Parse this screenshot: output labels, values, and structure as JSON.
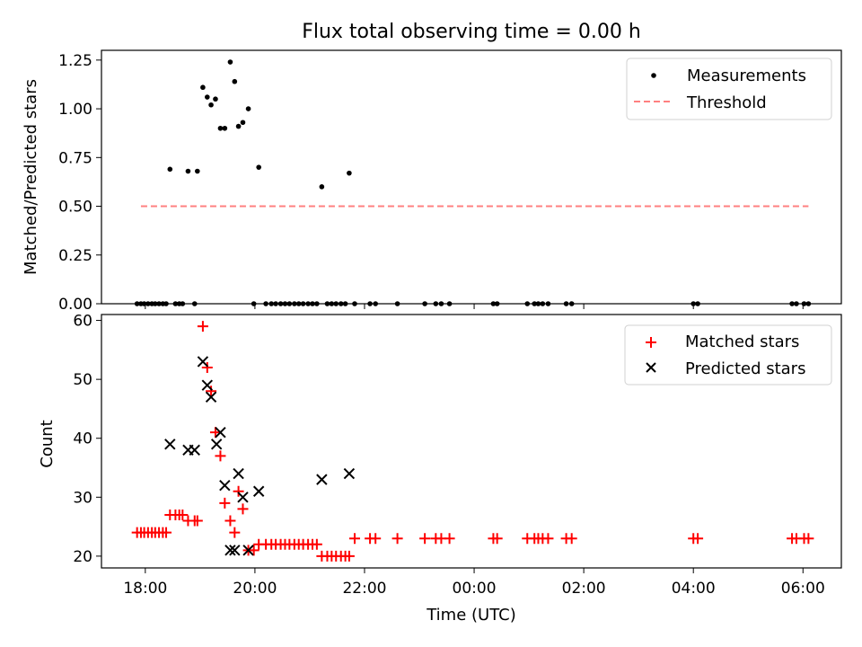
{
  "title": "Flux total observing time = 0.00 h",
  "colors": {
    "matched": "#ff0000",
    "predicted": "#000000",
    "threshold": "#ff8080",
    "measurement": "#000000"
  },
  "chart_data": [
    {
      "type": "scatter",
      "ylabel": "Matched/Predicted stars",
      "ylim": [
        0,
        1.3
      ],
      "yticks": [
        "0.00",
        "0.25",
        "0.50",
        "0.75",
        "1.00",
        "1.25"
      ],
      "legend": {
        "position": "top-right",
        "entries": [
          "Measurements",
          "Threshold"
        ]
      },
      "threshold": {
        "label": "Threshold",
        "value": 0.5,
        "x_start": 17.92,
        "x_end": 30.1
      },
      "series": [
        {
          "name": "Measurements",
          "points": [
            [
              17.85,
              0
            ],
            [
              17.92,
              0
            ],
            [
              17.98,
              0
            ],
            [
              18.05,
              0
            ],
            [
              18.12,
              0
            ],
            [
              18.18,
              0
            ],
            [
              18.25,
              0
            ],
            [
              18.32,
              0
            ],
            [
              18.38,
              0
            ],
            [
              18.45,
              0.69
            ],
            [
              18.55,
              0
            ],
            [
              18.62,
              0
            ],
            [
              18.68,
              0
            ],
            [
              18.78,
              0.68
            ],
            [
              18.9,
              0
            ],
            [
              18.95,
              0.68
            ],
            [
              19.05,
              1.11
            ],
            [
              19.13,
              1.06
            ],
            [
              19.2,
              1.02
            ],
            [
              19.28,
              1.05
            ],
            [
              19.37,
              0.9
            ],
            [
              19.45,
              0.9
            ],
            [
              19.55,
              1.24
            ],
            [
              19.63,
              1.14
            ],
            [
              19.7,
              0.91
            ],
            [
              19.78,
              0.93
            ],
            [
              19.88,
              1.0
            ],
            [
              19.98,
              0
            ],
            [
              20.07,
              0.7
            ],
            [
              20.2,
              0
            ],
            [
              20.3,
              0
            ],
            [
              20.38,
              0
            ],
            [
              20.47,
              0
            ],
            [
              20.55,
              0
            ],
            [
              20.63,
              0
            ],
            [
              20.72,
              0
            ],
            [
              20.8,
              0
            ],
            [
              20.88,
              0
            ],
            [
              20.97,
              0
            ],
            [
              21.05,
              0
            ],
            [
              21.13,
              0
            ],
            [
              21.22,
              0.6
            ],
            [
              21.32,
              0
            ],
            [
              21.4,
              0
            ],
            [
              21.48,
              0
            ],
            [
              21.57,
              0
            ],
            [
              21.65,
              0
            ],
            [
              21.72,
              0.67
            ],
            [
              21.82,
              0
            ],
            [
              22.1,
              0
            ],
            [
              22.2,
              0
            ],
            [
              22.6,
              0
            ],
            [
              23.1,
              0
            ],
            [
              23.3,
              0
            ],
            [
              23.4,
              0
            ],
            [
              23.55,
              0
            ],
            [
              24.35,
              0
            ],
            [
              24.42,
              0
            ],
            [
              24.97,
              0
            ],
            [
              25.1,
              0
            ],
            [
              25.17,
              0
            ],
            [
              25.25,
              0
            ],
            [
              25.35,
              0
            ],
            [
              25.68,
              0
            ],
            [
              25.78,
              0
            ],
            [
              28.0,
              0
            ],
            [
              28.08,
              0
            ],
            [
              29.8,
              0
            ],
            [
              29.88,
              0
            ],
            [
              30.02,
              0
            ],
            [
              30.1,
              0
            ]
          ]
        }
      ]
    },
    {
      "type": "scatter",
      "xlabel": "Time (UTC)",
      "ylabel": "Count",
      "ylim": [
        18,
        61
      ],
      "yticks": [
        "20",
        "30",
        "40",
        "50",
        "60"
      ],
      "xlim": [
        17.2,
        30.7
      ],
      "xtick_values": [
        18,
        20,
        22,
        24,
        26,
        28,
        30
      ],
      "xticks": [
        "18:00",
        "20:00",
        "22:00",
        "00:00",
        "02:00",
        "04:00",
        "06:00"
      ],
      "legend": {
        "position": "top-right",
        "entries": [
          "Matched stars",
          "Predicted stars"
        ]
      },
      "series": [
        {
          "name": "Matched stars",
          "points": [
            [
              17.85,
              24
            ],
            [
              17.92,
              24
            ],
            [
              17.98,
              24
            ],
            [
              18.05,
              24
            ],
            [
              18.12,
              24
            ],
            [
              18.18,
              24
            ],
            [
              18.25,
              24
            ],
            [
              18.32,
              24
            ],
            [
              18.38,
              24
            ],
            [
              18.45,
              27
            ],
            [
              18.55,
              27
            ],
            [
              18.62,
              27
            ],
            [
              18.68,
              27
            ],
            [
              18.78,
              26
            ],
            [
              18.9,
              26
            ],
            [
              18.95,
              26
            ],
            [
              19.05,
              59
            ],
            [
              19.13,
              52
            ],
            [
              19.2,
              48
            ],
            [
              19.28,
              41
            ],
            [
              19.37,
              37
            ],
            [
              19.45,
              29
            ],
            [
              19.55,
              26
            ],
            [
              19.63,
              24
            ],
            [
              19.7,
              31
            ],
            [
              19.78,
              28
            ],
            [
              19.88,
              21
            ],
            [
              19.98,
              21
            ],
            [
              20.07,
              22
            ],
            [
              20.2,
              22
            ],
            [
              20.3,
              22
            ],
            [
              20.38,
              22
            ],
            [
              20.47,
              22
            ],
            [
              20.55,
              22
            ],
            [
              20.63,
              22
            ],
            [
              20.72,
              22
            ],
            [
              20.8,
              22
            ],
            [
              20.88,
              22
            ],
            [
              20.97,
              22
            ],
            [
              21.05,
              22
            ],
            [
              21.13,
              22
            ],
            [
              21.22,
              20
            ],
            [
              21.32,
              20
            ],
            [
              21.4,
              20
            ],
            [
              21.48,
              20
            ],
            [
              21.57,
              20
            ],
            [
              21.65,
              20
            ],
            [
              21.72,
              20
            ],
            [
              21.82,
              23
            ],
            [
              22.1,
              23
            ],
            [
              22.2,
              23
            ],
            [
              22.6,
              23
            ],
            [
              23.1,
              23
            ],
            [
              23.3,
              23
            ],
            [
              23.4,
              23
            ],
            [
              23.55,
              23
            ],
            [
              24.35,
              23
            ],
            [
              24.42,
              23
            ],
            [
              24.97,
              23
            ],
            [
              25.1,
              23
            ],
            [
              25.17,
              23
            ],
            [
              25.25,
              23
            ],
            [
              25.35,
              23
            ],
            [
              25.68,
              23
            ],
            [
              25.78,
              23
            ],
            [
              28.0,
              23
            ],
            [
              28.08,
              23
            ],
            [
              29.8,
              23
            ],
            [
              29.88,
              23
            ],
            [
              30.02,
              23
            ],
            [
              30.1,
              23
            ]
          ]
        },
        {
          "name": "Predicted stars",
          "points": [
            [
              18.45,
              39
            ],
            [
              18.78,
              38
            ],
            [
              18.9,
              38
            ],
            [
              19.05,
              53
            ],
            [
              19.13,
              49
            ],
            [
              19.2,
              47
            ],
            [
              19.3,
              39
            ],
            [
              19.37,
              41
            ],
            [
              19.45,
              32
            ],
            [
              19.55,
              21
            ],
            [
              19.63,
              21
            ],
            [
              19.7,
              34
            ],
            [
              19.78,
              30
            ],
            [
              19.88,
              21
            ],
            [
              20.07,
              31
            ],
            [
              21.22,
              33
            ],
            [
              21.72,
              34
            ]
          ]
        }
      ]
    }
  ]
}
